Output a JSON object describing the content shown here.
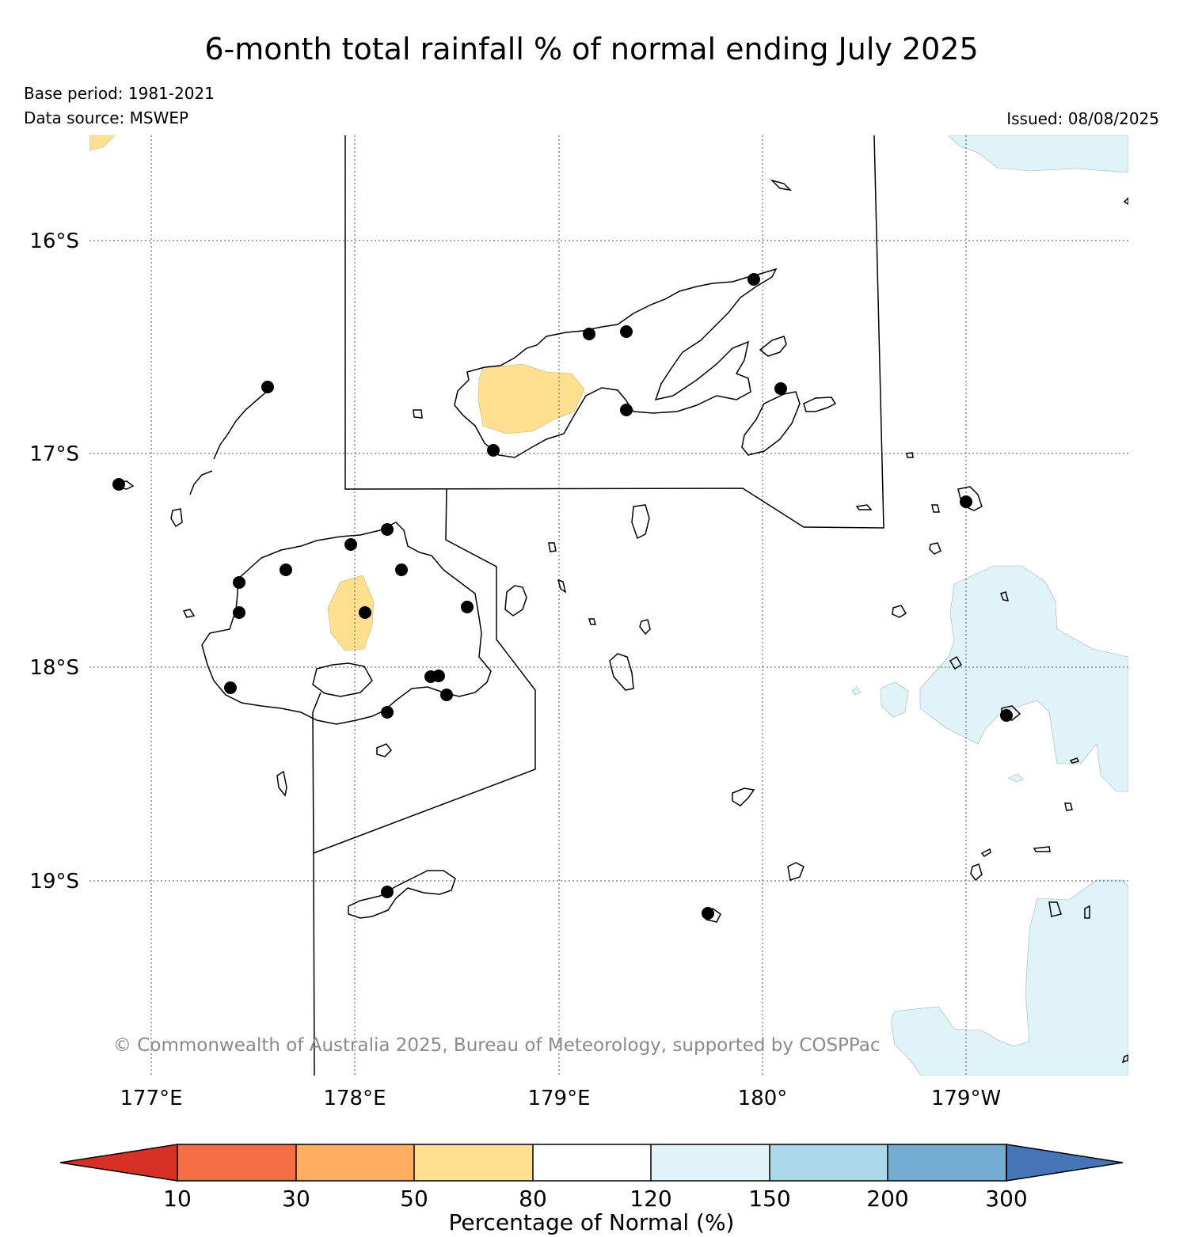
{
  "title": "6-month total rainfall % of normal ending July 2025",
  "base_period": "Base period: 1981-2021",
  "data_source": "Data source: MSWEP",
  "issued": "Issued: 08/08/2025",
  "copyright": "© Commonwealth of Australia 2025, Bureau of Meteorology, supported by COSPPac",
  "map": {
    "lon_labels": [
      "177°E",
      "178°E",
      "179°E",
      "180°",
      "179°W"
    ],
    "lat_labels": [
      "16°S",
      "17°S",
      "18°S",
      "19°S"
    ],
    "gridlines": "dotted"
  },
  "colorbar": {
    "title": "Percentage of Normal (%)",
    "ticks": [
      "10",
      "30",
      "50",
      "80",
      "120",
      "150",
      "200",
      "300"
    ],
    "colors": [
      "#d73027",
      "#f46d43",
      "#fdae61",
      "#fee090",
      "#ffffff",
      "#e0f3f8",
      "#abd9e9",
      "#74add1",
      "#4575b4"
    ]
  },
  "shading": {
    "dry_color": "#fee090",
    "wet_color": "#e0f3f8"
  }
}
